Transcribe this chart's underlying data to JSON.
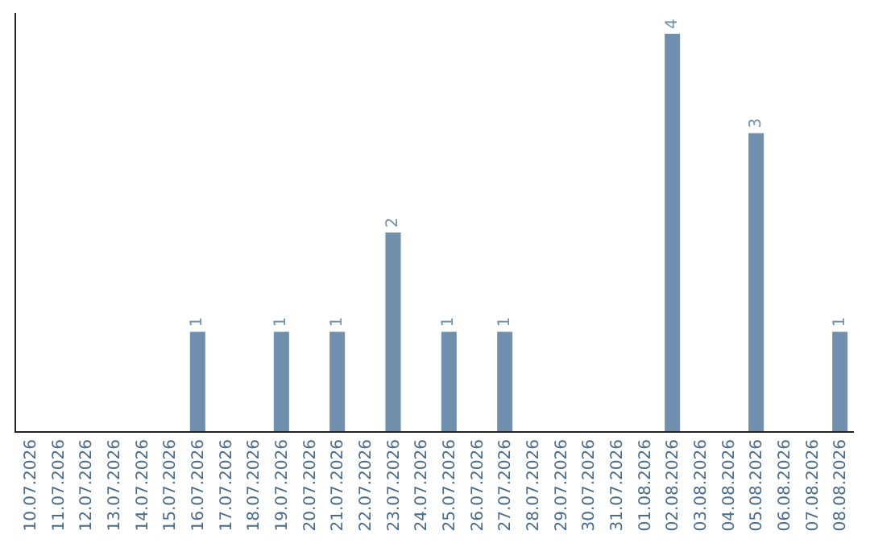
{
  "chart_data": {
    "type": "bar",
    "categories": [
      "10.07.2026",
      "11.07.2026",
      "12.07.2026",
      "13.07.2026",
      "14.07.2026",
      "15.07.2026",
      "16.07.2026",
      "17.07.2026",
      "18.07.2026",
      "19.07.2026",
      "20.07.2026",
      "21.07.2026",
      "22.07.2026",
      "23.07.2026",
      "24.07.2026",
      "25.07.2026",
      "26.07.2026",
      "27.07.2026",
      "28.07.2026",
      "29.07.2026",
      "30.07.2026",
      "31.07.2026",
      "01.08.2026",
      "02.08.2026",
      "03.08.2026",
      "04.08.2026",
      "05.08.2026",
      "06.08.2026",
      "07.08.2026",
      "08.08.2026"
    ],
    "values": [
      0,
      0,
      0,
      0,
      0,
      0,
      1,
      0,
      0,
      1,
      0,
      1,
      0,
      2,
      0,
      1,
      0,
      1,
      0,
      0,
      0,
      0,
      0,
      4,
      0,
      0,
      3,
      0,
      0,
      1
    ],
    "value_labels": [
      null,
      null,
      null,
      null,
      null,
      null,
      "1",
      null,
      null,
      "1",
      null,
      "1",
      null,
      "2",
      null,
      "1",
      null,
      "1",
      null,
      null,
      null,
      null,
      null,
      "4",
      null,
      null,
      "3",
      null,
      null,
      "1"
    ],
    "color": "#6f8fad",
    "tick_labels": "x"
  }
}
